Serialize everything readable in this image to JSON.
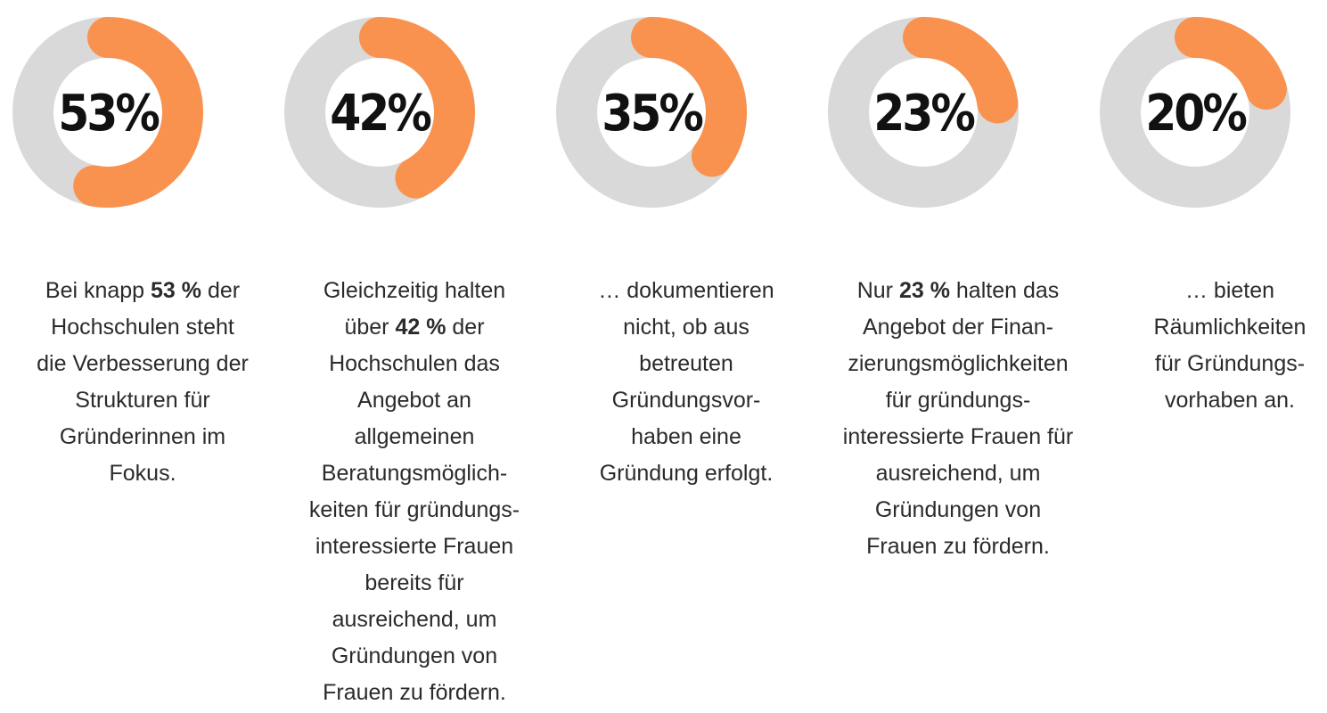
{
  "colors": {
    "track": "#d9d9d9",
    "accent": "#f9924f",
    "value_text": "#111111",
    "body_text": "#2b2b2b"
  },
  "chart_data": {
    "type": "donut",
    "values": [
      53,
      42,
      35,
      23,
      20
    ],
    "labels": [
      "53%",
      "42%",
      "35%",
      "23%",
      "20%"
    ],
    "max": 100
  },
  "items": [
    {
      "percent": 53,
      "label": "53%",
      "text_lines": [
        [
          "Bei knapp ",
          {
            "b": "53 %"
          },
          " der"
        ],
        [
          "Hochschulen steht"
        ],
        [
          "die Verbesserung der"
        ],
        [
          "Strukturen für"
        ],
        [
          "Gründerinnen im"
        ],
        [
          "Fokus."
        ]
      ]
    },
    {
      "percent": 42,
      "label": "42%",
      "text_lines": [
        [
          "Gleichzeitig halten"
        ],
        [
          "über ",
          {
            "b": "42 %"
          },
          " der"
        ],
        [
          "Hochschulen das"
        ],
        [
          "Angebot an"
        ],
        [
          "allgemeinen"
        ],
        [
          "Beratungsmöglich-"
        ],
        [
          "keiten für gründungs-"
        ],
        [
          "interessierte Frauen"
        ],
        [
          "bereits für"
        ],
        [
          "ausreichend, um"
        ],
        [
          "Gründungen von"
        ],
        [
          "Frauen zu fördern."
        ]
      ]
    },
    {
      "percent": 35,
      "label": "35%",
      "text_lines": [
        [
          "… dokumentieren"
        ],
        [
          "nicht, ob aus"
        ],
        [
          "betreuten"
        ],
        [
          "Gründungsvor-"
        ],
        [
          "haben eine"
        ],
        [
          "Gründung erfolgt."
        ]
      ]
    },
    {
      "percent": 23,
      "label": "23%",
      "text_lines": [
        [
          "Nur ",
          {
            "b": "23 %"
          },
          " halten das"
        ],
        [
          "Angebot der Finan-"
        ],
        [
          "zierungsmöglichkeiten"
        ],
        [
          "für gründungs-"
        ],
        [
          "interessierte Frauen für"
        ],
        [
          "ausreichend, um"
        ],
        [
          "Gründungen von"
        ],
        [
          "Frauen zu fördern."
        ]
      ]
    },
    {
      "percent": 20,
      "label": "20%",
      "text_lines": [
        [
          "… bieten"
        ],
        [
          "Räumlichkeiten"
        ],
        [
          "für Gründungs-"
        ],
        [
          "vorhaben an."
        ]
      ]
    }
  ]
}
